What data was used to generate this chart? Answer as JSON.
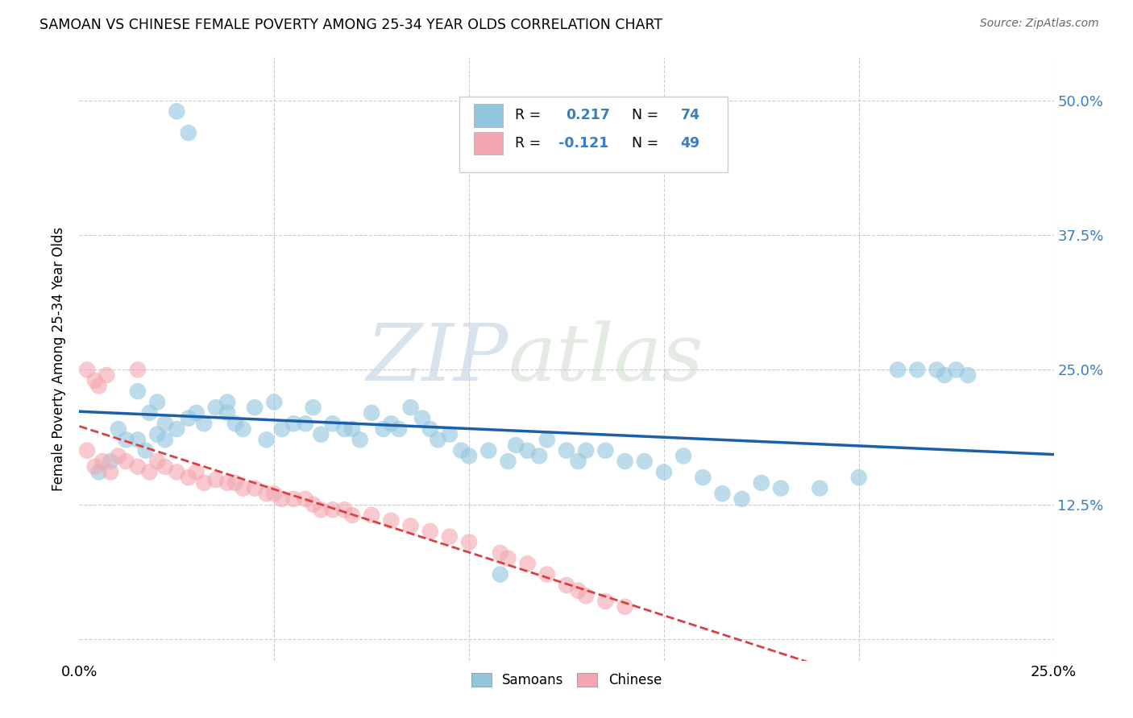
{
  "title": "SAMOAN VS CHINESE FEMALE POVERTY AMONG 25-34 YEAR OLDS CORRELATION CHART",
  "source": "Source: ZipAtlas.com",
  "ylabel": "Female Poverty Among 25-34 Year Olds",
  "xlim": [
    0.0,
    0.25
  ],
  "ylim": [
    -0.02,
    0.54
  ],
  "ytick_positions": [
    0.0,
    0.125,
    0.25,
    0.375,
    0.5
  ],
  "yticklabels": [
    "",
    "12.5%",
    "25.0%",
    "37.5%",
    "50.0%"
  ],
  "samoan_color": "#92c5de",
  "chinese_color": "#f4a6b0",
  "samoan_line_color": "#1a5fa8",
  "chinese_line_color": "#d94040",
  "background_color": "#ffffff",
  "grid_color": "#cccccc",
  "samoan_x": [
    0.005,
    0.025,
    0.028,
    0.015,
    0.018,
    0.01,
    0.012,
    0.008,
    0.02,
    0.022,
    0.015,
    0.017,
    0.025,
    0.03,
    0.032,
    0.028,
    0.02,
    0.022,
    0.035,
    0.038,
    0.04,
    0.042,
    0.038,
    0.045,
    0.048,
    0.05,
    0.052,
    0.055,
    0.058,
    0.06,
    0.062,
    0.065,
    0.068,
    0.07,
    0.072,
    0.075,
    0.078,
    0.08,
    0.082,
    0.085,
    0.088,
    0.09,
    0.092,
    0.095,
    0.098,
    0.1,
    0.105,
    0.108,
    0.11,
    0.112,
    0.115,
    0.118,
    0.12,
    0.125,
    0.128,
    0.13,
    0.135,
    0.14,
    0.145,
    0.15,
    0.155,
    0.16,
    0.165,
    0.17,
    0.175,
    0.18,
    0.19,
    0.2,
    0.21,
    0.215,
    0.22,
    0.222,
    0.225,
    0.228
  ],
  "samoan_y": [
    0.155,
    0.49,
    0.47,
    0.23,
    0.21,
    0.195,
    0.185,
    0.165,
    0.22,
    0.2,
    0.185,
    0.175,
    0.195,
    0.21,
    0.2,
    0.205,
    0.19,
    0.185,
    0.215,
    0.22,
    0.2,
    0.195,
    0.21,
    0.215,
    0.185,
    0.22,
    0.195,
    0.2,
    0.2,
    0.215,
    0.19,
    0.2,
    0.195,
    0.195,
    0.185,
    0.21,
    0.195,
    0.2,
    0.195,
    0.215,
    0.205,
    0.195,
    0.185,
    0.19,
    0.175,
    0.17,
    0.175,
    0.06,
    0.165,
    0.18,
    0.175,
    0.17,
    0.185,
    0.175,
    0.165,
    0.175,
    0.175,
    0.165,
    0.165,
    0.155,
    0.17,
    0.15,
    0.135,
    0.13,
    0.145,
    0.14,
    0.14,
    0.15,
    0.25,
    0.25,
    0.25,
    0.245,
    0.25,
    0.245
  ],
  "chinese_x": [
    0.002,
    0.004,
    0.006,
    0.008,
    0.01,
    0.012,
    0.015,
    0.018,
    0.02,
    0.022,
    0.025,
    0.028,
    0.03,
    0.032,
    0.035,
    0.038,
    0.04,
    0.042,
    0.045,
    0.048,
    0.05,
    0.052,
    0.055,
    0.058,
    0.06,
    0.062,
    0.065,
    0.068,
    0.07,
    0.075,
    0.08,
    0.085,
    0.09,
    0.095,
    0.1,
    0.108,
    0.11,
    0.115,
    0.12,
    0.125,
    0.128,
    0.13,
    0.135,
    0.14,
    0.002,
    0.004,
    0.005,
    0.007,
    0.015
  ],
  "chinese_y": [
    0.175,
    0.16,
    0.165,
    0.155,
    0.17,
    0.165,
    0.16,
    0.155,
    0.165,
    0.16,
    0.155,
    0.15,
    0.155,
    0.145,
    0.148,
    0.145,
    0.145,
    0.14,
    0.14,
    0.135,
    0.135,
    0.13,
    0.13,
    0.13,
    0.125,
    0.12,
    0.12,
    0.12,
    0.115,
    0.115,
    0.11,
    0.105,
    0.1,
    0.095,
    0.09,
    0.08,
    0.075,
    0.07,
    0.06,
    0.05,
    0.045,
    0.04,
    0.035,
    0.03,
    0.25,
    0.24,
    0.235,
    0.245,
    0.25
  ]
}
